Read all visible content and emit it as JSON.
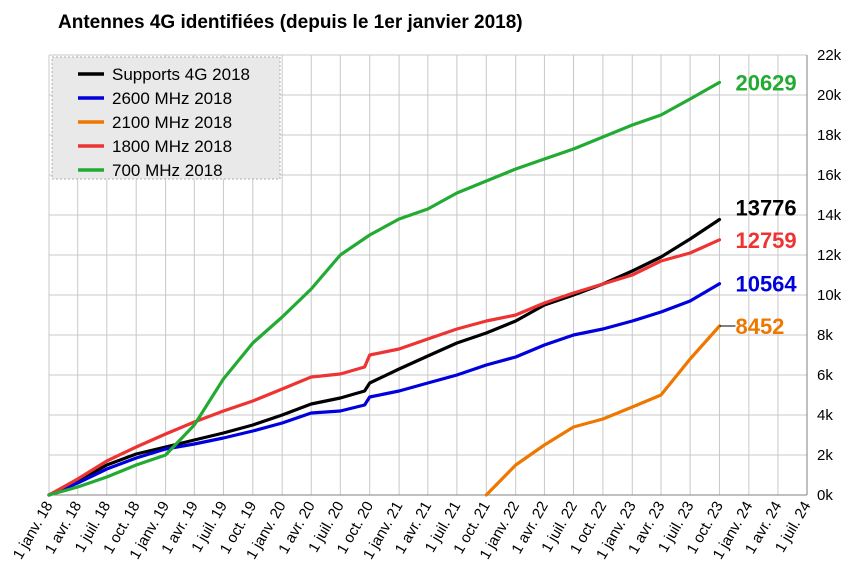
{
  "chart_data": {
    "type": "line",
    "title": "Antennes 4G identifiées (depuis le 1er janvier 2018)",
    "xlabel": "",
    "ylabel": "",
    "x_ticks": [
      "1 janv. 18",
      "1 avr. 18",
      "1 juil. 18",
      "1 oct. 18",
      "1 janv. 19",
      "1 avr. 19",
      "1 juil. 19",
      "1 oct. 19",
      "1 janv. 20",
      "1 avr. 20",
      "1 juil. 20",
      "1 oct. 20",
      "1 janv. 21",
      "1 avr. 21",
      "1 juil. 21",
      "1 oct. 21",
      "1 janv. 22",
      "1 avr. 22",
      "1 juil. 22",
      "1 oct. 22",
      "1 janv. 23",
      "1 avr. 23",
      "1 juil. 23",
      "1 oct. 23",
      "1 janv. 24",
      "1 avr. 24",
      "1 juil. 24"
    ],
    "y_ticks": [
      "0k",
      "2k",
      "4k",
      "6k",
      "8k",
      "10k",
      "12k",
      "14k",
      "16k",
      "18k",
      "20k",
      "22k"
    ],
    "ylim": [
      0,
      22000
    ],
    "y_axis_side": "right",
    "grid": true,
    "legend_position": "top-left",
    "series": [
      {
        "name": "Supports 4G 2018",
        "color": "#000000",
        "end_label": "13776",
        "x": [
          "1 janv. 18",
          "1 avr. 18",
          "1 juil. 18",
          "1 oct. 18",
          "1 janv. 19",
          "1 avr. 19",
          "1 juil. 19",
          "1 oct. 19",
          "1 janv. 20",
          "1 avr. 20",
          "1 juil. 20",
          "15 sept. 20",
          "1 oct. 20",
          "1 janv. 21",
          "1 avr. 21",
          "1 juil. 21",
          "1 oct. 21",
          "1 janv. 22",
          "1 avr. 22",
          "1 juil. 22",
          "1 oct. 22",
          "1 janv. 23",
          "1 avr. 23",
          "1 juil. 23",
          "1 oct. 23"
        ],
        "values": [
          0,
          700,
          1500,
          2050,
          2400,
          2750,
          3100,
          3500,
          4000,
          4550,
          4850,
          5200,
          5600,
          6300,
          6950,
          7600,
          8100,
          8700,
          9500,
          10000,
          10550,
          11200,
          11900,
          12800,
          13776
        ]
      },
      {
        "name": "2600 MHz 2018",
        "color": "#0000dd",
        "end_label": "10564",
        "x": [
          "1 janv. 18",
          "1 avr. 18",
          "1 juil. 18",
          "1 oct. 18",
          "1 janv. 19",
          "1 avr. 19",
          "1 juil. 19",
          "1 oct. 19",
          "1 janv. 20",
          "1 avr. 20",
          "1 juil. 20",
          "15 sept. 20",
          "1 oct. 20",
          "1 janv. 21",
          "1 avr. 21",
          "1 juil. 21",
          "1 oct. 21",
          "1 janv. 22",
          "1 avr. 22",
          "1 juil. 22",
          "1 oct. 22",
          "1 janv. 23",
          "1 avr. 23",
          "1 juil. 23",
          "1 oct. 23"
        ],
        "values": [
          0,
          600,
          1300,
          1850,
          2300,
          2550,
          2850,
          3200,
          3600,
          4100,
          4200,
          4500,
          4900,
          5200,
          5600,
          6000,
          6500,
          6900,
          7500,
          8000,
          8300,
          8700,
          9150,
          9700,
          10564
        ]
      },
      {
        "name": "2100 MHz 2018",
        "color": "#ee7700",
        "end_label": "8452",
        "x": [
          "1 oct. 21",
          "1 janv. 22",
          "1 avr. 22",
          "1 juil. 22",
          "1 oct. 22",
          "1 janv. 23",
          "1 avr. 23",
          "1 juil. 23",
          "1 oct. 23"
        ],
        "values": [
          0,
          1500,
          2500,
          3400,
          3800,
          4400,
          5000,
          6800,
          8452
        ]
      },
      {
        "name": "1800 MHz 2018",
        "color": "#ee3333",
        "end_label": "12759",
        "x": [
          "1 janv. 18",
          "1 avr. 18",
          "1 juil. 18",
          "1 oct. 18",
          "1 janv. 19",
          "1 avr. 19",
          "1 juil. 19",
          "1 oct. 19",
          "1 janv. 20",
          "1 avr. 20",
          "1 juil. 20",
          "15 sept. 20",
          "1 oct. 20",
          "1 janv. 21",
          "1 avr. 21",
          "1 juil. 21",
          "1 oct. 21",
          "1 janv. 22",
          "1 avr. 22",
          "1 juil. 22",
          "1 oct. 22",
          "1 janv. 23",
          "1 avr. 23",
          "1 juil. 23",
          "1 oct. 23"
        ],
        "values": [
          0,
          800,
          1700,
          2400,
          3050,
          3650,
          4200,
          4700,
          5300,
          5900,
          6050,
          6400,
          7000,
          7300,
          7800,
          8300,
          8700,
          9000,
          9600,
          10100,
          10550,
          11000,
          11700,
          12100,
          12759
        ]
      },
      {
        "name": "700 MHz 2018",
        "color": "#22aa33",
        "end_label": "20629",
        "x": [
          "1 janv. 18",
          "1 avr. 18",
          "1 juil. 18",
          "1 oct. 18",
          "1 janv. 19",
          "1 avr. 19",
          "1 juil. 19",
          "1 oct. 19",
          "1 janv. 20",
          "1 avr. 20",
          "1 juil. 20",
          "1 oct. 20",
          "1 janv. 21",
          "1 avr. 21",
          "1 juil. 21",
          "1 oct. 21",
          "1 janv. 22",
          "1 avr. 22",
          "1 juil. 22",
          "1 oct. 22",
          "1 janv. 23",
          "1 avr. 23",
          "1 juil. 23",
          "1 oct. 23"
        ],
        "values": [
          0,
          400,
          900,
          1500,
          2000,
          3500,
          5800,
          7600,
          8900,
          10300,
          12000,
          13000,
          13800,
          14300,
          15100,
          15700,
          16300,
          16800,
          17300,
          17900,
          18500,
          19000,
          19800,
          20629
        ]
      }
    ]
  }
}
